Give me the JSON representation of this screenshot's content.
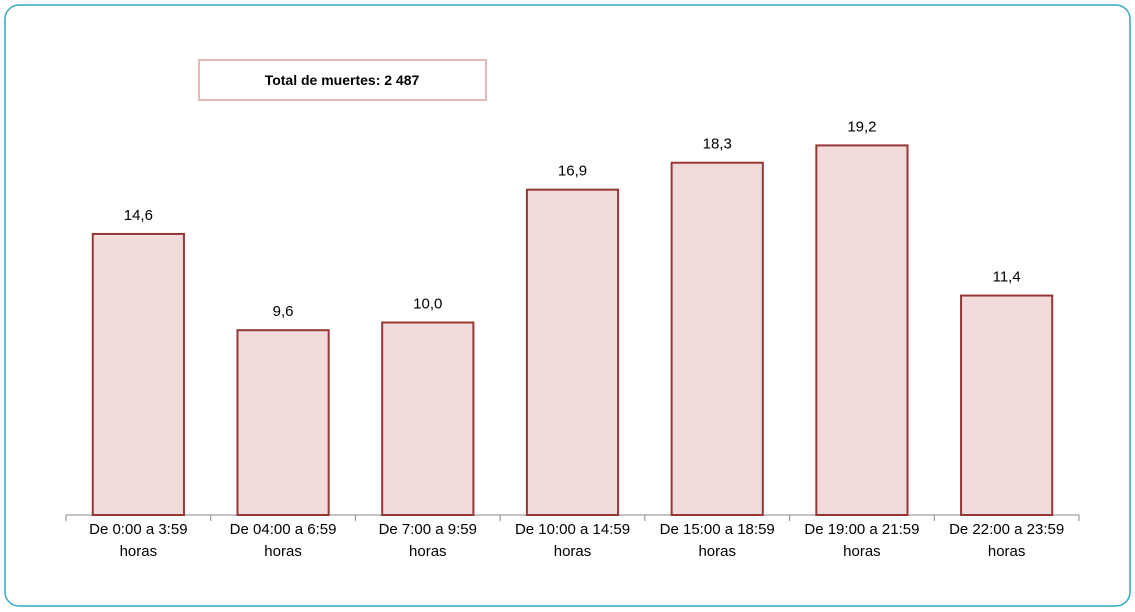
{
  "chart_data": {
    "type": "bar",
    "annotation": "Total de muertes: 2 487",
    "categories": [
      "De 0:00 a 3:59\nhoras",
      "De 04:00 a 6:59\nhoras",
      "De 7:00 a 9:59\nhoras",
      "De 10:00 a 14:59\nhoras",
      "De 15:00 a 18:59\nhoras",
      "De 19:00 a 21:59\nhoras",
      "De 22:00 a 23:59\nhoras"
    ],
    "values": [
      14.6,
      9.6,
      10.0,
      16.9,
      18.3,
      19.2,
      11.4
    ],
    "value_labels": [
      "14,6",
      "9,6",
      "10,0",
      "16,9",
      "18,3",
      "19,2",
      "11,4"
    ],
    "color": "#f2dcdb",
    "edge_color": "#953735",
    "ylim": [
      0,
      20
    ]
  }
}
